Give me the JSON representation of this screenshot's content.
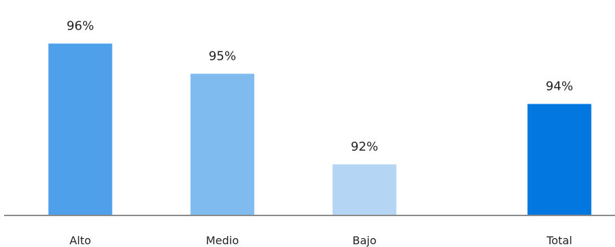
{
  "chart_data": {
    "type": "bar",
    "categories": [
      "Alto",
      "Medio",
      "Bajo",
      "Total"
    ],
    "values": [
      96,
      95,
      92,
      94
    ],
    "value_labels": [
      "96%",
      "95%",
      "92%",
      "94%"
    ],
    "colors": [
      "#4fa0ea",
      "#80bbef",
      "#b4d6f4",
      "#0277e0"
    ],
    "axis_color": "#8a8a8a",
    "grid": false,
    "title": "",
    "xlabel": "",
    "ylabel": ""
  }
}
